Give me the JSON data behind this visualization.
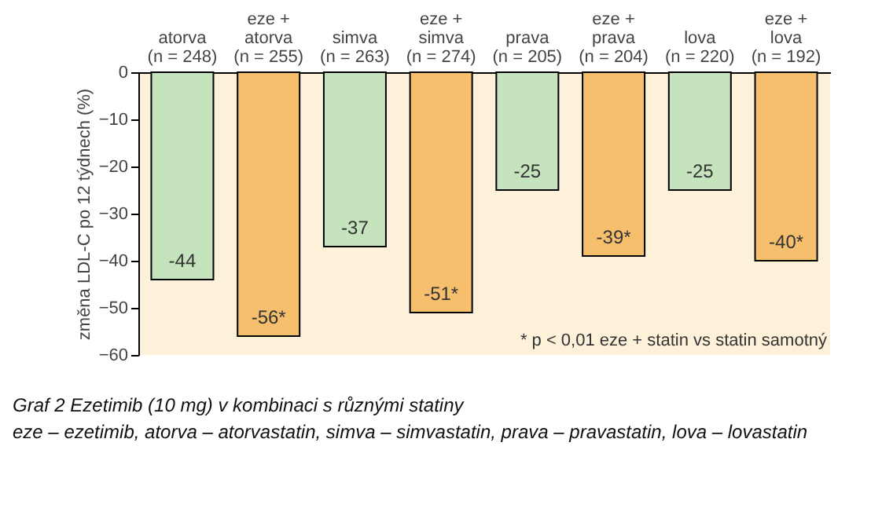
{
  "chart_data": {
    "type": "bar",
    "title": "Graf 2  Ezetimib (10 mg) v kombinaci s různými statiny",
    "subtitle": "eze – ezetimib, atorva – atorvastatin, simva – simvastatin, prava – pravastatin, lova – lovastatin",
    "ylabel": "změna LDL-C po 12 týdnech (%)",
    "categories": [
      "atorva\n(n = 248)",
      "eze +\natorva\n(n = 255)",
      "simva\n(n = 263)",
      "eze +\nsimva\n(n = 274)",
      "prava\n(n = 205)",
      "eze +\nprava\n(n = 204)",
      "lova\n(n = 220)",
      "eze +\nlova\n(n = 192)"
    ],
    "values": [
      -44,
      -56,
      -37,
      -51,
      -25,
      -39,
      -25,
      -40
    ],
    "value_labels": [
      "-44",
      "-56*",
      "-37",
      "-51*",
      "-25",
      "-39*",
      "-25",
      "-40*"
    ],
    "colors": [
      "#c5e3bd",
      "#f5bf6e",
      "#c5e3bd",
      "#f5bf6e",
      "#c5e3bd",
      "#f5bf6e",
      "#c5e3bd",
      "#f5bf6e"
    ],
    "ylim": [
      -60,
      0
    ],
    "yticks": [
      0,
      -10,
      -20,
      -30,
      -40,
      -50,
      -60
    ],
    "grid": false,
    "annotations": [
      "* p < 0,01 eze + statin vs statin samotný"
    ]
  }
}
